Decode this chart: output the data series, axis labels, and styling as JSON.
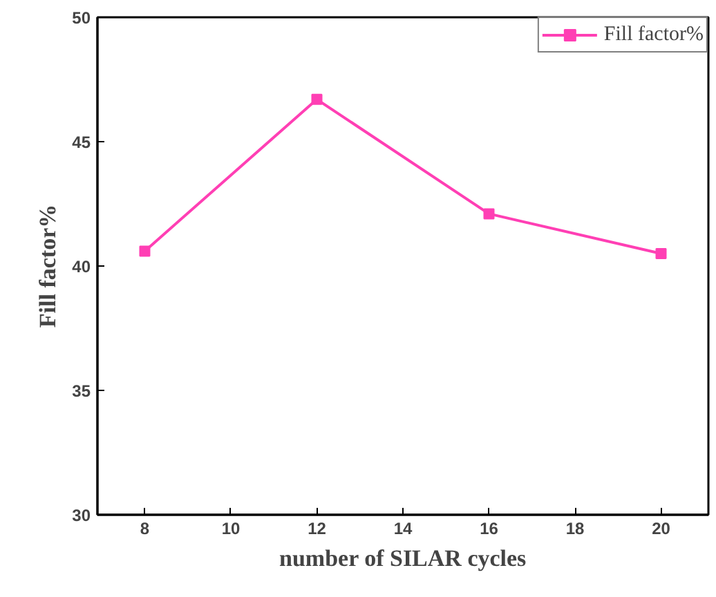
{
  "chart_data": {
    "type": "line",
    "xlabel": "number of SILAR cycles",
    "ylabel": "Fill factor%",
    "x": [
      8,
      12,
      16,
      20
    ],
    "series": [
      {
        "name": "Fill factor%",
        "color": "#ff3fb4",
        "values": [
          40.6,
          46.7,
          42.1,
          40.5
        ]
      }
    ],
    "xlim": [
      6.9,
      21.1
    ],
    "ylim": [
      30,
      50
    ],
    "xticks": [
      8,
      10,
      12,
      14,
      16,
      18,
      20
    ],
    "yticks": [
      30,
      35,
      40,
      45,
      50
    ],
    "grid": false,
    "legend": "top right",
    "marker": "square",
    "line_style": "solid"
  }
}
